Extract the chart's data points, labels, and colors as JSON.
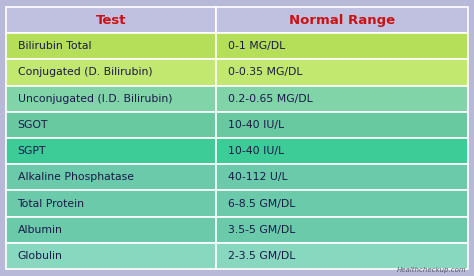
{
  "header": [
    "Test",
    "Normal Range"
  ],
  "rows": [
    [
      "Bilirubin Total",
      "0-1 MG/DL"
    ],
    [
      "Conjugated (D. Bilirubin)",
      "0-0.35 MG/DL"
    ],
    [
      "Unconjugated (I.D. Bilirubin)",
      "0.2-0.65 MG/DL"
    ],
    [
      "SGOT",
      "10-40 IU/L"
    ],
    [
      "SGPT",
      "10-40 IU/L"
    ],
    [
      "Alkaline Phosphatase",
      "40-112 U/L"
    ],
    [
      "Total Protein",
      "6-8.5 GM/DL"
    ],
    [
      "Albumin",
      "3.5-5 GM/DL"
    ],
    [
      "Globulin",
      "2-3.5 GM/DL"
    ]
  ],
  "row_colors": [
    "#b8e05a",
    "#c8e878",
    "#7ed8b0",
    "#68cca8",
    "#48d8a8",
    "#68cca8",
    "#68cca8",
    "#68cca8",
    "#88ddc8"
  ],
  "header_bg": "#c0c0e0",
  "header_text_color": "#cc1111",
  "cell_text_color": "#1a1a4a",
  "divider_color": "#aaaaaa",
  "watermark": "Healthcheckup.com",
  "watermark_color": "#555566",
  "fig_bg": "#b8b8d8",
  "col_split": 0.455,
  "figw": 4.74,
  "figh": 2.76,
  "dpi": 100
}
